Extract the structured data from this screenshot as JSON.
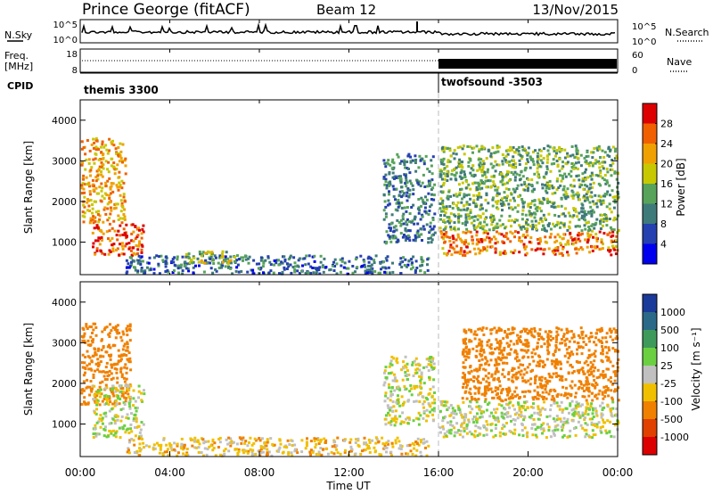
{
  "header": {
    "site": "Prince George (fitACF)",
    "beam": "Beam 12",
    "date": "13/Nov/2015"
  },
  "left_labels": {
    "nsky": "N.Sky",
    "freq": "Freq.",
    "freq_unit": "[MHz]",
    "cpid": "CPID"
  },
  "right_labels": {
    "nsearch": "N.Search",
    "nave": "Nave"
  },
  "cpid_modes": [
    "themis 3300",
    "twofsound -3503"
  ],
  "chart_data": [
    {
      "type": "line",
      "name": "noise",
      "y_left_ticks": [
        "10^5",
        "10^0"
      ],
      "y_right_ticks": [
        "10^5",
        "10^0"
      ],
      "series": [
        {
          "label": "N.Sky",
          "style": "solid"
        },
        {
          "label": "N.Search",
          "style": "dotted"
        }
      ]
    },
    {
      "type": "line",
      "name": "frequency",
      "y_left_ticks": [
        "18",
        "8"
      ],
      "y_right_ticks": [
        "60",
        "0"
      ],
      "series": [
        {
          "label": "Freq.",
          "style": "dotted"
        },
        {
          "label": "Nave",
          "style": "dotted"
        }
      ]
    },
    {
      "type": "heatmap",
      "name": "power",
      "ylabel": "Slant Range [km]",
      "yticks": [
        "4000",
        "3000",
        "2000",
        "1000"
      ],
      "ylim": [
        200,
        4500
      ],
      "colorbar": {
        "label": "Power [dB]",
        "ticks": [
          "28",
          "24",
          "20",
          "16",
          "12",
          "8",
          "4"
        ],
        "colors": [
          "#0000ee",
          "#2540b0",
          "#3f7a7a",
          "#57a35a",
          "#c8c800",
          "#f0a000",
          "#f06000",
          "#dd0000"
        ]
      },
      "regions": [
        {
          "t": [
            0.0,
            2.0
          ],
          "r": [
            1500,
            3600
          ],
          "level": 22
        },
        {
          "t": [
            0.5,
            2.8
          ],
          "r": [
            700,
            1500
          ],
          "level": 27
        },
        {
          "t": [
            2.0,
            15.5
          ],
          "r": [
            250,
            700
          ],
          "level": 9
        },
        {
          "t": [
            4.5,
            7.0
          ],
          "r": [
            500,
            800
          ],
          "level": 17
        },
        {
          "t": [
            13.5,
            15.8
          ],
          "r": [
            1000,
            3200
          ],
          "level": 10
        },
        {
          "t": [
            16.0,
            24.0
          ],
          "r": [
            700,
            1300
          ],
          "level": 25
        },
        {
          "t": [
            16.0,
            24.0
          ],
          "r": [
            1300,
            3400
          ],
          "level": 14
        }
      ]
    },
    {
      "type": "heatmap",
      "name": "velocity",
      "ylabel": "Slant Range [km]",
      "yticks": [
        "4000",
        "3000",
        "2000",
        "1000"
      ],
      "ylim": [
        200,
        4500
      ],
      "colorbar": {
        "label": "Velocity [m s⁻¹]",
        "ticks": [
          "1000",
          "500",
          "100",
          "25",
          "-25",
          "-100",
          "-500",
          "-1000"
        ],
        "colors": [
          "#1a3a9a",
          "#2a6a88",
          "#3e9a5a",
          "#6ad040",
          "#c0c0c0",
          "#f0c000",
          "#f08000",
          "#e04000",
          "#dd0000"
        ]
      },
      "regions": [
        {
          "t": [
            0.0,
            2.2
          ],
          "r": [
            1500,
            3500
          ],
          "velocity": -300
        },
        {
          "t": [
            0.5,
            2.8
          ],
          "r": [
            700,
            2000
          ],
          "velocity": 0
        },
        {
          "t": [
            2.0,
            15.5
          ],
          "r": [
            250,
            700
          ],
          "velocity": -60
        },
        {
          "t": [
            13.5,
            15.8
          ],
          "r": [
            1000,
            2700
          ],
          "velocity": 0
        },
        {
          "t": [
            16.0,
            24.0
          ],
          "r": [
            700,
            1600
          ],
          "velocity": 0
        },
        {
          "t": [
            17.0,
            24.0
          ],
          "r": [
            1600,
            3400
          ],
          "velocity": -200
        }
      ]
    }
  ],
  "time_axis": {
    "ticks": [
      "00:00",
      "04:00",
      "08:00",
      "12:00",
      "16:00",
      "20:00",
      "00:00"
    ],
    "label": "Time UT",
    "mode_change_hour": 16
  }
}
